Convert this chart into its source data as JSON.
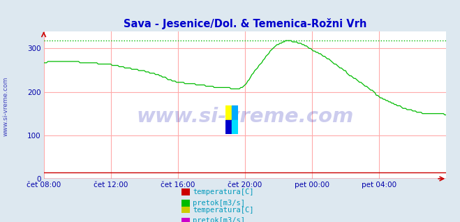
{
  "title": "Sava - Jesenice/Dol. & Temenica-Rožni Vrh",
  "title_color": "#0000cc",
  "bg_color": "#dde8f0",
  "plot_bg_color": "#ffffff",
  "watermark": "www.si-vreme.com",
  "watermark_color": "#0000aa",
  "grid_color": "#ffaaaa",
  "grid_color_v": "#ffaaaa",
  "ylim": [
    0,
    340
  ],
  "yticks": [
    0,
    100,
    200,
    300
  ],
  "xtick_labels": [
    "čet 08:00",
    "čet 12:00",
    "čet 16:00",
    "čet 20:00",
    "pet 00:00",
    "pet 04:00"
  ],
  "xtick_positions": [
    0,
    48,
    96,
    144,
    192,
    240
  ],
  "n_points": 289,
  "series1_color": "#cc0000",
  "series2_color": "#00bb00",
  "series3_color": "#cccc00",
  "series4_color": "#cc00cc",
  "max_dashed_color": "#00bb00",
  "max_value": 318,
  "tick_color": "#0000aa",
  "side_label": "www.si-vreme.com",
  "side_label_color": "#0000aa",
  "legend1_labels": [
    "temperatura[C]",
    "pretok[m3/s]"
  ],
  "legend1_colors": [
    "#cc0000",
    "#00bb00"
  ],
  "legend2_labels": [
    "temperatura[C]",
    "pretok[m3/s]"
  ],
  "legend2_colors": [
    "#cccc00",
    "#cc00cc"
  ],
  "legend_text_color": "#0099bb",
  "logo_colors": [
    "#ffff00",
    "#0088ff",
    "#0000bb",
    "#00ccff"
  ]
}
